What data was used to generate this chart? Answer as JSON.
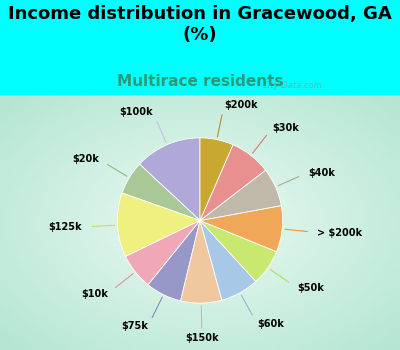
{
  "title": "Income distribution in Gracewood, GA\n(%)",
  "subtitle": "Multirace residents",
  "bg_cyan": "#00FFFF",
  "chart_bg_left": "#c8e8d0",
  "chart_bg_center": "#eaf8f0",
  "labels": [
    "$100k",
    "$20k",
    "$125k",
    "$10k",
    "$75k",
    "$150k",
    "$60k",
    "$50k",
    "> $200k",
    "$40k",
    "$30k",
    "$200k"
  ],
  "values": [
    13.0,
    6.5,
    12.5,
    7.0,
    7.0,
    8.0,
    7.5,
    7.0,
    9.0,
    7.5,
    8.0,
    6.5
  ],
  "colors": [
    "#b0a8d8",
    "#a8c898",
    "#f0f080",
    "#f0a8b8",
    "#9898c8",
    "#f0c8a0",
    "#a8c8e8",
    "#c8e870",
    "#f0a858",
    "#c0b8a8",
    "#e89090",
    "#c8a830"
  ],
  "line_colors": [
    "#c8c0e8",
    "#90b880",
    "#d8d860",
    "#e890a0",
    "#8888b8",
    "#e0b878",
    "#90b8d8",
    "#b8d858",
    "#e09848",
    "#b0a898",
    "#d87878",
    "#b89020"
  ],
  "startangle": 90,
  "title_fontsize": 13,
  "subtitle_fontsize": 11,
  "label_fontsize": 7,
  "watermark": "City-Data.com"
}
